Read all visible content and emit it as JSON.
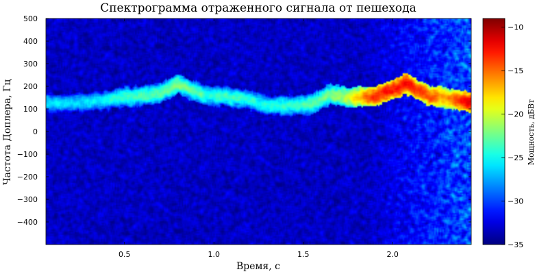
{
  "chart_data": {
    "type": "heatmap",
    "title": "Спектрограмма отраженного сигнала от пешехода",
    "xlabel": "Время, с",
    "ylabel": "Частота Доплера, Гц",
    "colorbar_label": "Мощность, дБВт",
    "colormap": "jet",
    "xlim": [
      0.06,
      2.44
    ],
    "ylim": [
      -500,
      500
    ],
    "clim": [
      -35,
      -9
    ],
    "x_ticks": [
      0.5,
      1.0,
      1.5,
      2.0
    ],
    "x_tick_labels": [
      "0.5",
      "1.0",
      "1.5",
      "2.0"
    ],
    "y_ticks": [
      500,
      400,
      300,
      200,
      100,
      0,
      -100,
      -200,
      -300,
      -400
    ],
    "y_tick_labels": [
      "500",
      "400",
      "300",
      "200",
      "100",
      "0",
      "−100",
      "−200",
      "−300",
      "−400"
    ],
    "colorbar_ticks": [
      -10,
      -15,
      -20,
      -25,
      -30,
      -35
    ],
    "colorbar_tick_labels": [
      "−10",
      "−15",
      "−20",
      "−25",
      "−30",
      "−35"
    ],
    "background_db": -33.5,
    "ridge": {
      "description_points": [
        {
          "t": 0.1,
          "f": 125,
          "db": -26
        },
        {
          "t": 0.3,
          "f": 130,
          "db": -26
        },
        {
          "t": 0.5,
          "f": 150,
          "db": -24
        },
        {
          "t": 0.7,
          "f": 170,
          "db": -23
        },
        {
          "t": 0.8,
          "f": 210,
          "db": -22
        },
        {
          "t": 0.95,
          "f": 160,
          "db": -24
        },
        {
          "t": 1.15,
          "f": 150,
          "db": -24
        },
        {
          "t": 1.3,
          "f": 115,
          "db": -25
        },
        {
          "t": 1.45,
          "f": 115,
          "db": -24
        },
        {
          "t": 1.55,
          "f": 120,
          "db": -23
        },
        {
          "t": 1.65,
          "f": 165,
          "db": -22
        },
        {
          "t": 1.75,
          "f": 150,
          "db": -20
        },
        {
          "t": 1.9,
          "f": 155,
          "db": -13
        },
        {
          "t": 2.08,
          "f": 210,
          "db": -12
        },
        {
          "t": 2.2,
          "f": 160,
          "db": -14
        },
        {
          "t": 2.3,
          "f": 150,
          "db": -16
        },
        {
          "t": 2.42,
          "f": 130,
          "db": -11
        }
      ]
    },
    "noise_floor_rises_after_t": 1.85
  }
}
